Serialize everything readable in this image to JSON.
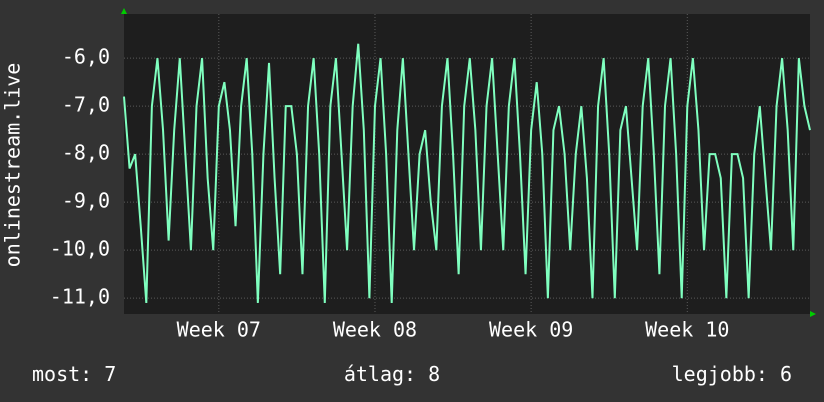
{
  "chart_data": {
    "type": "line",
    "y_label": "onlinestream.live",
    "ylim": [
      -11.33,
      -5.08
    ],
    "yticks": [
      {
        "value": -6,
        "label": "-6,0"
      },
      {
        "value": -7,
        "label": "-7,0"
      },
      {
        "value": -8,
        "label": "-8,0"
      },
      {
        "value": -9,
        "label": "-9,0"
      },
      {
        "value": -10,
        "label": "-10,0"
      },
      {
        "value": -11,
        "label": "-11,0"
      }
    ],
    "xlim": [
      0,
      123
    ],
    "xticks": [
      {
        "value": 17,
        "label": "Week 07"
      },
      {
        "value": 45,
        "label": "Week 08"
      },
      {
        "value": 73,
        "label": "Week 09"
      },
      {
        "value": 101,
        "label": "Week 10"
      }
    ],
    "grid": true,
    "series": [
      {
        "color": "#7fffbf",
        "values": [
          -6.8,
          -8.3,
          -8.0,
          -9.5,
          -11.1,
          -7.0,
          -6.0,
          -7.5,
          -9.8,
          -7.5,
          -6.0,
          -8.0,
          -10.0,
          -7.0,
          -6.0,
          -8.5,
          -10.0,
          -7.0,
          -6.5,
          -7.5,
          -9.5,
          -7.0,
          -6.0,
          -8.0,
          -11.1,
          -8.0,
          -6.1,
          -8.5,
          -10.5,
          -7.0,
          -7.0,
          -8.0,
          -10.5,
          -7.0,
          -6.0,
          -8.0,
          -11.1,
          -7.0,
          -6.0,
          -8.0,
          -10.0,
          -7.0,
          -5.7,
          -7.5,
          -11.0,
          -7.0,
          -6.0,
          -8.0,
          -11.1,
          -7.5,
          -6.0,
          -8.0,
          -10.0,
          -8.0,
          -7.5,
          -9.0,
          -10.0,
          -7.0,
          -6.0,
          -8.0,
          -10.5,
          -7.0,
          -6.0,
          -7.5,
          -10.0,
          -7.0,
          -6.0,
          -8.0,
          -10.0,
          -7.0,
          -6.0,
          -8.0,
          -10.5,
          -7.5,
          -6.5,
          -8.0,
          -11.0,
          -7.5,
          -7.0,
          -8.0,
          -10.0,
          -8.0,
          -7.0,
          -8.5,
          -11.0,
          -7.0,
          -6.0,
          -8.0,
          -11.0,
          -7.5,
          -7.0,
          -8.5,
          -10.0,
          -7.0,
          -6.0,
          -8.0,
          -10.5,
          -7.0,
          -6.0,
          -8.0,
          -11.0,
          -7.0,
          -6.0,
          -7.5,
          -10.0,
          -8.0,
          -8.0,
          -8.5,
          -11.0,
          -8.0,
          -8.0,
          -8.5,
          -11.0,
          -8.0,
          -7.0,
          -8.5,
          -10.0,
          -7.0,
          -6.0,
          -7.5,
          -10.0,
          -6.0,
          -7.0,
          -7.5
        ]
      }
    ],
    "stats": [
      {
        "label": "most:",
        "value": 7
      },
      {
        "label": "átlag:",
        "value": 8
      },
      {
        "label": "legjobb:",
        "value": 6
      }
    ]
  }
}
